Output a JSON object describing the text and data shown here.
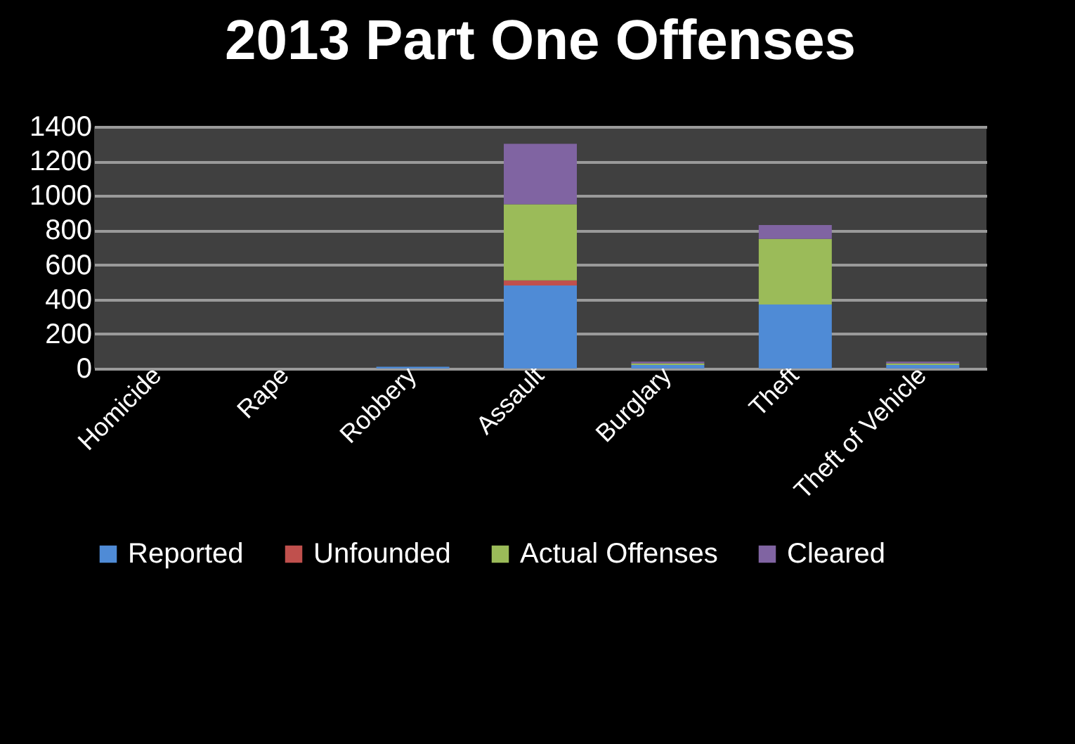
{
  "chart_data": {
    "type": "bar",
    "title": "2013 Part One Offenses",
    "stacked": true,
    "categories": [
      "Homicide",
      "Rape",
      "Robbery",
      "Assault",
      "Burglary",
      "Theft",
      "Theft of Vehicle"
    ],
    "series": [
      {
        "name": "Reported",
        "color": "#4f8bd6",
        "values": [
          0,
          0,
          10,
          480,
          20,
          370,
          20
        ]
      },
      {
        "name": "Unfounded",
        "color": "#c0504d",
        "values": [
          0,
          0,
          0,
          30,
          0,
          0,
          0
        ]
      },
      {
        "name": "Actual Offenses",
        "color": "#9bbb59",
        "values": [
          0,
          0,
          0,
          440,
          10,
          380,
          10
        ]
      },
      {
        "name": "Cleared",
        "color": "#8064a2",
        "values": [
          0,
          0,
          0,
          350,
          10,
          80,
          10
        ]
      }
    ],
    "ylim": [
      0,
      1400
    ],
    "yticks": [
      0,
      200,
      400,
      600,
      800,
      1000,
      1200,
      1400
    ],
    "grid": "y",
    "legend": "bottom"
  }
}
